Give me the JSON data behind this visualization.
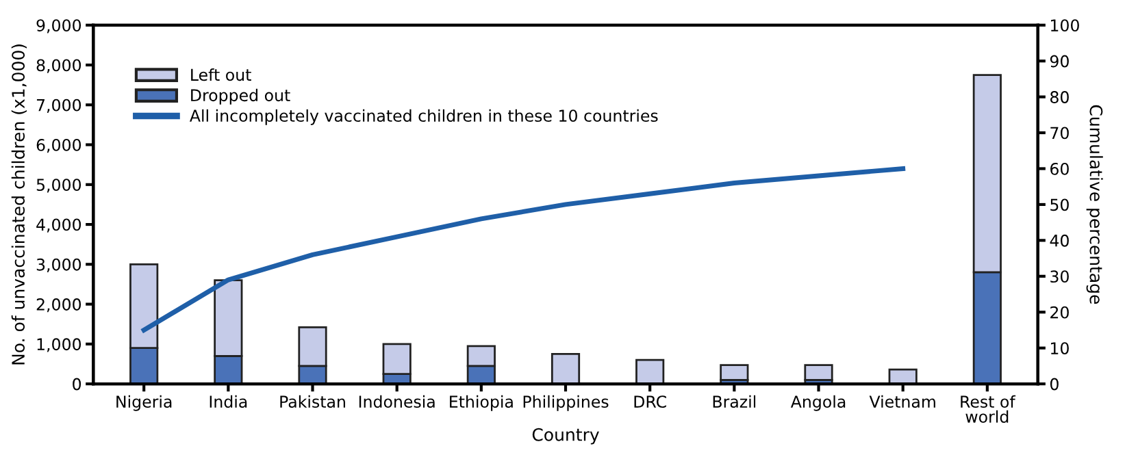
{
  "chart_data": {
    "type": "bar",
    "stacked": true,
    "xlabel": "Country",
    "ylabel": "No. of unvaccinated children (x1,000)",
    "y2label": "Cumulative percentage",
    "categories": [
      "Nigeria",
      "India",
      "Pakistan",
      "Indonesia",
      "Ethiopia",
      "Philippines",
      "DRC",
      "Brazil",
      "Angola",
      "Vietnam",
      "Rest of\nworld"
    ],
    "series": [
      {
        "name": "Dropped out",
        "color": "#4a72b8",
        "values": [
          900,
          700,
          450,
          250,
          450,
          null,
          null,
          100,
          100,
          null,
          2800
        ]
      },
      {
        "name": "Left out",
        "color": "#c5cbe8",
        "values": [
          2100,
          1900,
          970,
          750,
          500,
          750,
          600,
          370,
          370,
          360,
          4950
        ]
      },
      {
        "name": "All incompletely vaccinated children in these 10 countries",
        "type": "line",
        "axis": "y2",
        "color": "#1f5fa8",
        "values": [
          15,
          29,
          36,
          41,
          46,
          50,
          53,
          56,
          58,
          60,
          null
        ]
      }
    ],
    "ylim": [
      0,
      9000
    ],
    "yticks": [
      {
        "value": 0,
        "label": "0"
      },
      {
        "value": 1000,
        "label": "1,000"
      },
      {
        "value": 2000,
        "label": "2,000"
      },
      {
        "value": 3000,
        "label": "3,000"
      },
      {
        "value": 4000,
        "label": "4,000"
      },
      {
        "value": 5000,
        "label": "5,000"
      },
      {
        "value": 6000,
        "label": "6,000"
      },
      {
        "value": 7000,
        "label": "7,000"
      },
      {
        "value": 8000,
        "label": "8,000"
      },
      {
        "value": 9000,
        "label": "9,000"
      }
    ],
    "y2lim": [
      0,
      100
    ],
    "y2ticks": [
      0,
      10,
      20,
      30,
      40,
      50,
      60,
      70,
      80,
      90,
      100
    ],
    "legend": "top left",
    "grid": false,
    "marker": "none"
  }
}
